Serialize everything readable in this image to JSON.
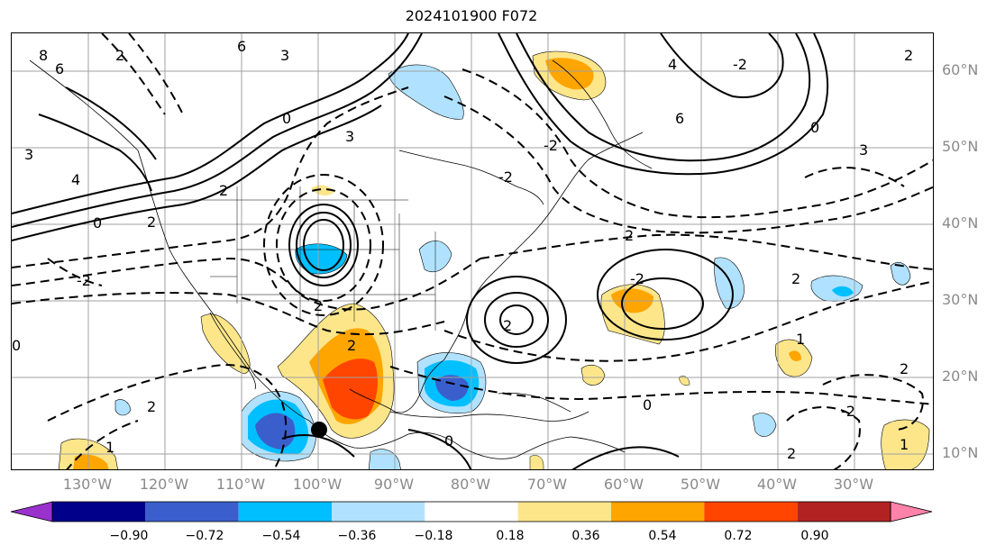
{
  "title": "2024101900 F072",
  "lon_labels": [
    "130°W",
    "120°W",
    "110°W",
    "100°W",
    "90°W",
    "80°W",
    "70°W",
    "60°W",
    "50°W",
    "40°W",
    "30°W"
  ],
  "lat_labels": [
    "60°N",
    "50°N",
    "40°N",
    "30°N",
    "20°N",
    "10°N"
  ],
  "colorbar": {
    "ticks": [
      "−0.90",
      "−0.72",
      "−0.54",
      "−0.36",
      "−0.18",
      "0.18",
      "0.36",
      "0.54",
      "0.72",
      "0.90"
    ],
    "colors": [
      "#9932cc",
      "#00008b",
      "#3a5fcd",
      "#00bfff",
      "#b0e2ff",
      "#ffffff",
      "#fde68a",
      "#ffa500",
      "#ff4500",
      "#b22222",
      "#ff82ab"
    ]
  },
  "contour_labels": [
    "8",
    "6",
    "4",
    "3",
    "2",
    "2",
    "0",
    "-2",
    "2",
    "0",
    "2",
    "1",
    "3",
    "6",
    "2",
    "0",
    "3",
    "2",
    "6",
    "4",
    "-2",
    "-2",
    "2",
    "2",
    "-2",
    "2",
    "0",
    "2",
    "1",
    "2",
    "-2",
    "0",
    "1",
    "3",
    "2",
    "-2",
    "0"
  ],
  "marker": "black-dot"
}
